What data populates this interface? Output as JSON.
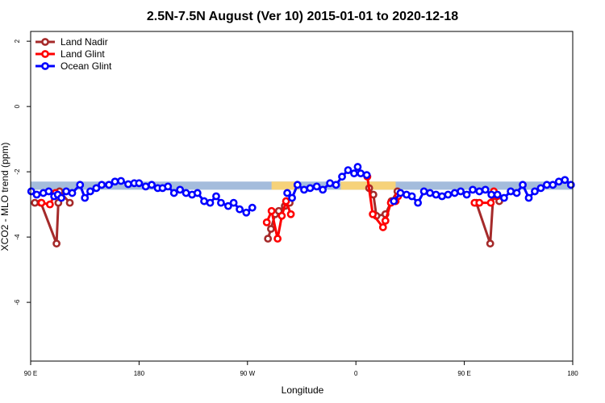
{
  "chart_data": {
    "type": "line",
    "title": "2.5N-7.5N August (Ver 10)   2015-01-01 to 2020-12-18",
    "xlabel": "Longitude",
    "ylabel": "XCO2 - MLO trend (ppm)",
    "xlim": [
      -270,
      -180
    ],
    "ylim": [
      -7.8,
      2.3
    ],
    "x_ticks": [
      {
        "value": -270,
        "label": "90 E"
      },
      {
        "value": -252,
        "label": "180"
      },
      {
        "value": -234,
        "label": "90 W"
      },
      {
        "value": -216,
        "label": "0"
      },
      {
        "value": -198,
        "label": "90 E"
      },
      {
        "value": -180,
        "label": "180"
      }
    ],
    "y_ticks": [
      {
        "value": 2,
        "label": "2"
      },
      {
        "value": 0,
        "label": "0"
      },
      {
        "value": -2,
        "label": "-2"
      },
      {
        "value": -4,
        "label": "-4"
      },
      {
        "value": -6,
        "label": "-6"
      }
    ],
    "legend_position": "top-left",
    "land_ocean_band": {
      "ymin": -2.55,
      "ymax": -2.3,
      "ocean_color": "#a4bcdc",
      "land_color": "#f6d27a",
      "land_segments": [
        [
          -230.0,
          -225.5
        ],
        [
          -218.5,
          -209.4
        ]
      ]
    },
    "series": [
      {
        "name": "Land Nadir",
        "color": "#a52a2a",
        "points": [
          [
            -269.3,
            -2.95
          ],
          [
            -268.3,
            -2.95
          ],
          [
            -265.7,
            -4.2
          ],
          [
            -265.4,
            -2.95
          ],
          [
            -265.2,
            -2.6
          ],
          [
            -263.5,
            -2.95
          ],
          [
            -230.6,
            -4.05
          ],
          [
            -230.1,
            -3.75
          ],
          [
            -229.4,
            -3.3
          ],
          [
            -228.8,
            -3.2
          ],
          [
            -227.8,
            -3.05
          ],
          [
            -227.5,
            -2.95
          ],
          [
            -227.0,
            -2.95
          ],
          [
            -213.8,
            -2.5
          ],
          [
            -213.1,
            -2.7
          ],
          [
            -212.6,
            -3.35
          ],
          [
            -211.1,
            -3.3
          ],
          [
            -210.1,
            -2.9
          ],
          [
            -209.1,
            -2.6
          ],
          [
            -196.0,
            -2.95
          ],
          [
            -193.7,
            -4.2
          ],
          [
            -193.2,
            -2.75
          ],
          [
            -192.2,
            -2.9
          ]
        ]
      },
      {
        "name": "Land Glint",
        "color": "#ff0000",
        "points": [
          [
            -268.2,
            -2.95
          ],
          [
            -266.8,
            -3.0
          ],
          [
            -265.9,
            -2.65
          ],
          [
            -230.8,
            -3.55
          ],
          [
            -230.0,
            -3.2
          ],
          [
            -229.0,
            -4.05
          ],
          [
            -228.3,
            -3.35
          ],
          [
            -227.6,
            -2.9
          ],
          [
            -226.8,
            -3.3
          ],
          [
            -214.1,
            -2.15
          ],
          [
            -213.2,
            -3.3
          ],
          [
            -211.5,
            -3.7
          ],
          [
            -211.1,
            -3.5
          ],
          [
            -210.2,
            -2.95
          ],
          [
            -209.4,
            -2.9
          ],
          [
            -209.0,
            -2.75
          ],
          [
            -196.3,
            -2.95
          ],
          [
            -195.5,
            -2.95
          ],
          [
            -193.6,
            -2.95
          ],
          [
            -193.1,
            -2.6
          ],
          [
            -192.6,
            -2.75
          ]
        ]
      },
      {
        "name": "Ocean Glint",
        "color": "#0000ff",
        "points": [
          [
            -269.9,
            -2.6
          ],
          [
            -269.0,
            -2.7
          ],
          [
            -267.9,
            -2.65
          ],
          [
            -267.0,
            -2.6
          ],
          [
            -266.1,
            -2.75
          ],
          [
            -265.5,
            -2.7
          ],
          [
            -264.9,
            -2.8
          ],
          [
            -264.1,
            -2.6
          ],
          [
            -263.1,
            -2.65
          ],
          [
            -261.8,
            -2.4
          ],
          [
            -261.0,
            -2.8
          ],
          [
            -260.1,
            -2.6
          ],
          [
            -259.1,
            -2.5
          ],
          [
            -258.2,
            -2.4
          ],
          [
            -257.0,
            -2.4
          ],
          [
            -256.0,
            -2.3
          ],
          [
            -255.0,
            -2.28
          ],
          [
            -253.8,
            -2.38
          ],
          [
            -252.8,
            -2.35
          ],
          [
            -252.0,
            -2.35
          ],
          [
            -250.9,
            -2.45
          ],
          [
            -249.9,
            -2.4
          ],
          [
            -248.9,
            -2.5
          ],
          [
            -248.1,
            -2.5
          ],
          [
            -247.2,
            -2.45
          ],
          [
            -246.2,
            -2.65
          ],
          [
            -245.2,
            -2.55
          ],
          [
            -244.2,
            -2.65
          ],
          [
            -243.2,
            -2.7
          ],
          [
            -242.3,
            -2.65
          ],
          [
            -241.2,
            -2.9
          ],
          [
            -240.2,
            -2.95
          ],
          [
            -239.2,
            -2.75
          ],
          [
            -238.4,
            -2.95
          ],
          [
            -237.2,
            -3.05
          ],
          [
            -236.3,
            -2.95
          ],
          [
            -235.3,
            -3.15
          ],
          [
            -234.2,
            -3.25
          ],
          [
            -233.2,
            -3.1
          ],
          [
            -227.4,
            -2.65
          ],
          [
            -226.6,
            -2.8
          ],
          [
            -225.7,
            -2.4
          ],
          [
            -224.6,
            -2.55
          ],
          [
            -223.6,
            -2.5
          ],
          [
            -222.5,
            -2.45
          ],
          [
            -221.5,
            -2.55
          ],
          [
            -220.3,
            -2.35
          ],
          [
            -219.3,
            -2.4
          ],
          [
            -218.3,
            -2.15
          ],
          [
            -217.3,
            -1.95
          ],
          [
            -216.3,
            -2.05
          ],
          [
            -215.7,
            -1.85
          ],
          [
            -215.2,
            -2.05
          ],
          [
            -214.2,
            -2.1
          ],
          [
            -209.7,
            -2.9
          ],
          [
            -208.6,
            -2.65
          ],
          [
            -207.6,
            -2.7
          ],
          [
            -206.7,
            -2.75
          ],
          [
            -205.7,
            -2.95
          ],
          [
            -204.7,
            -2.6
          ],
          [
            -203.7,
            -2.65
          ],
          [
            -202.7,
            -2.7
          ],
          [
            -201.7,
            -2.75
          ],
          [
            -200.7,
            -2.7
          ],
          [
            -199.6,
            -2.65
          ],
          [
            -198.6,
            -2.6
          ],
          [
            -197.6,
            -2.7
          ],
          [
            -196.6,
            -2.55
          ],
          [
            -195.5,
            -2.6
          ],
          [
            -194.5,
            -2.55
          ],
          [
            -193.5,
            -2.7
          ],
          [
            -192.5,
            -2.7
          ],
          [
            -191.4,
            -2.8
          ],
          [
            -190.3,
            -2.6
          ],
          [
            -189.3,
            -2.65
          ],
          [
            -188.3,
            -2.4
          ],
          [
            -187.3,
            -2.8
          ],
          [
            -186.3,
            -2.6
          ],
          [
            -185.3,
            -2.5
          ],
          [
            -184.3,
            -2.4
          ],
          [
            -183.3,
            -2.4
          ],
          [
            -182.3,
            -2.3
          ],
          [
            -181.3,
            -2.25
          ],
          [
            -180.3,
            -2.4
          ]
        ]
      }
    ]
  }
}
